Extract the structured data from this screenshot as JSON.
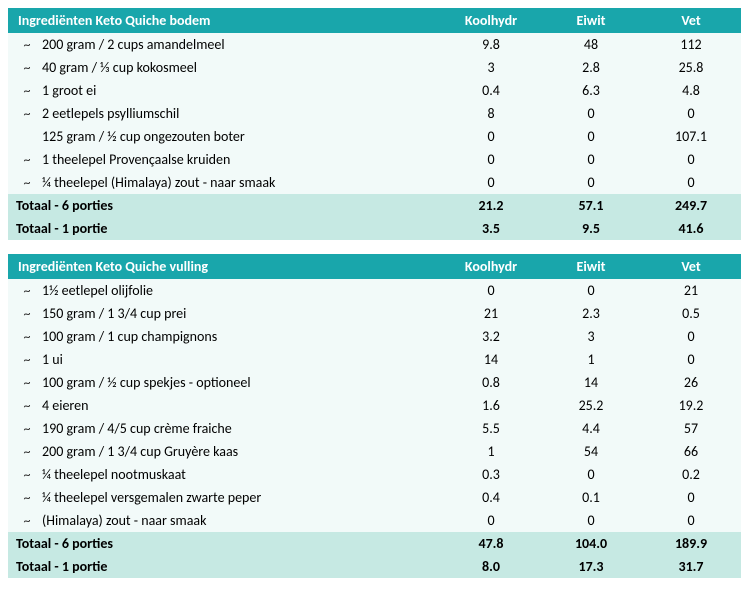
{
  "columns": {
    "carb": "Koolhydr",
    "protein": "Eiwit",
    "fat": "Vet"
  },
  "tables": [
    {
      "title": "Ingrediënten Keto Quiche bodem",
      "rows": [
        {
          "tilde": true,
          "name": "200 gram / 2 cups amandelmeel",
          "carb": "9.8",
          "protein": "48",
          "fat": "112"
        },
        {
          "tilde": true,
          "name": "40 gram / ⅓ cup kokosmeel",
          "carb": "3",
          "protein": "2.8",
          "fat": "25.8"
        },
        {
          "tilde": true,
          "name": "1 groot ei",
          "carb": "0.4",
          "protein": "6.3",
          "fat": "4.8"
        },
        {
          "tilde": true,
          "name": "2 eetlepels psylliumschil",
          "carb": "8",
          "protein": "0",
          "fat": "0"
        },
        {
          "tilde": false,
          "name": "125 gram / ½ cup ongezouten boter",
          "carb": "0",
          "protein": "0",
          "fat": "107.1"
        },
        {
          "tilde": true,
          "name": "1 theelepel Provençaalse kruiden",
          "carb": "0",
          "protein": "0",
          "fat": "0"
        },
        {
          "tilde": true,
          "name": "¼ theelepel (Himalaya) zout - naar smaak",
          "carb": "0",
          "protein": "0",
          "fat": "0"
        }
      ],
      "totals": [
        {
          "label": "Totaal - 6 porties",
          "carb": "21.2",
          "protein": "57.1",
          "fat": "249.7"
        },
        {
          "label": "Totaal - 1 portie",
          "carb": "3.5",
          "protein": "9.5",
          "fat": "41.6"
        }
      ]
    },
    {
      "title": "Ingrediënten Keto Quiche vulling",
      "rows": [
        {
          "tilde": true,
          "name": "1½ eetlepel olijfolie",
          "carb": "0",
          "protein": "0",
          "fat": "21"
        },
        {
          "tilde": true,
          "name": "150 gram / 1 3/4 cup prei",
          "carb": "21",
          "protein": "2.3",
          "fat": "0.5"
        },
        {
          "tilde": true,
          "name": "100 gram / 1 cup champignons",
          "carb": "3.2",
          "protein": "3",
          "fat": "0"
        },
        {
          "tilde": true,
          "name": "1 ui",
          "carb": "14",
          "protein": "1",
          "fat": "0"
        },
        {
          "tilde": true,
          "name": "100 gram / ½ cup spekjes - optioneel",
          "carb": "0.8",
          "protein": "14",
          "fat": "26"
        },
        {
          "tilde": true,
          "name": "4 eieren",
          "carb": "1.6",
          "protein": "25.2",
          "fat": "19.2"
        },
        {
          "tilde": true,
          "name": "190 gram / 4/5 cup crème fraiche",
          "carb": "5.5",
          "protein": "4.4",
          "fat": "57"
        },
        {
          "tilde": true,
          "name": "200 gram / 1 3/4 cup Gruyère kaas",
          "carb": "1",
          "protein": "54",
          "fat": "66"
        },
        {
          "tilde": true,
          "name": "¼ theelepel nootmuskaat",
          "carb": "0.3",
          "protein": "0",
          "fat": "0.2"
        },
        {
          "tilde": true,
          "name": "¼ theelepel versgemalen zwarte peper",
          "carb": "0.4",
          "protein": "0.1",
          "fat": "0"
        },
        {
          "tilde": true,
          "name": "(Himalaya) zout - naar smaak",
          "carb": "0",
          "protein": "0",
          "fat": "0"
        }
      ],
      "totals": [
        {
          "label": "Totaal - 6 porties",
          "carb": "47.8",
          "protein": "104.0",
          "fat": "189.9"
        },
        {
          "label": "Totaal - 1 portie",
          "carb": "8.0",
          "protein": "17.3",
          "fat": "31.7"
        }
      ]
    }
  ]
}
